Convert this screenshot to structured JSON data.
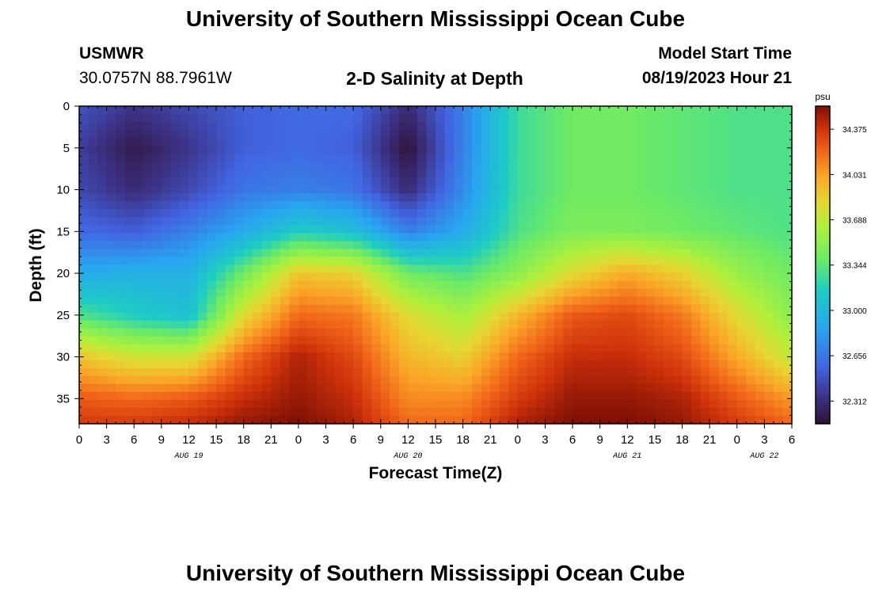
{
  "header": {
    "title": "University of Southern Mississippi Ocean Cube",
    "station": "USMWR",
    "coords": "30.0757N  88.7961W",
    "subtitle": "2-D Salinity at Depth",
    "model_label": "Model Start Time",
    "model_time": "08/19/2023 Hour 21"
  },
  "footer": {
    "title": "University of Southern Mississippi Ocean Cube"
  },
  "chart_data": {
    "type": "heatmap",
    "title": "2-D Salinity at Depth",
    "xlabel": "Forecast Time(Z)",
    "ylabel": "Depth (ft)",
    "x_tick_labels": [
      "0",
      "3",
      "6",
      "9",
      "12",
      "15",
      "18",
      "21",
      "0",
      "3",
      "6",
      "9",
      "12",
      "15",
      "18",
      "21",
      "0",
      "3",
      "6",
      "9",
      "12",
      "15",
      "18",
      "21",
      "0",
      "3",
      "6"
    ],
    "x_range_hours": [
      0,
      78
    ],
    "date_labels": [
      {
        "text": "AUG 19",
        "hour": 12
      },
      {
        "text": "AUG 20",
        "hour": 36
      },
      {
        "text": "AUG 21",
        "hour": 60
      },
      {
        "text": "AUG 22",
        "hour": 75
      }
    ],
    "y_ticks": [
      0,
      5,
      10,
      15,
      20,
      25,
      30,
      35
    ],
    "ylim": [
      0,
      38
    ],
    "colorbar": {
      "unit": "psu",
      "ticks": [
        32.312,
        32.656,
        33.0,
        33.344,
        33.688,
        34.031,
        34.375
      ],
      "tick_labels": [
        "32.312",
        "32.656",
        "33.000",
        "33.344",
        "33.688",
        "34.031",
        "34.375"
      ],
      "range": [
        32.14,
        34.55
      ]
    },
    "salinity_field": {
      "hours": [
        0,
        6,
        12,
        18,
        24,
        30,
        36,
        42,
        48,
        54,
        60,
        66,
        72,
        78
      ],
      "depths_ft": [
        0,
        5,
        10,
        15,
        20,
        25,
        30,
        35,
        38
      ],
      "values": [
        [
          32.5,
          32.35,
          32.45,
          32.55,
          32.6,
          32.6,
          32.3,
          32.7,
          33.25,
          33.4,
          33.4,
          33.35,
          33.3,
          33.3
        ],
        [
          32.4,
          32.2,
          32.35,
          32.55,
          32.6,
          32.55,
          32.15,
          32.7,
          33.25,
          33.4,
          33.4,
          33.35,
          33.3,
          33.3
        ],
        [
          32.45,
          32.3,
          32.45,
          32.65,
          32.7,
          32.65,
          32.3,
          32.75,
          33.25,
          33.4,
          33.4,
          33.35,
          33.3,
          33.3
        ],
        [
          32.6,
          32.55,
          32.7,
          32.9,
          33.15,
          33.05,
          32.7,
          32.9,
          33.3,
          33.45,
          33.45,
          33.4,
          33.35,
          33.3
        ],
        [
          32.9,
          32.95,
          32.95,
          33.4,
          33.9,
          33.85,
          33.4,
          33.3,
          33.5,
          33.8,
          34.0,
          33.85,
          33.55,
          33.4
        ],
        [
          33.3,
          33.15,
          33.05,
          33.8,
          34.2,
          34.15,
          33.8,
          33.6,
          33.95,
          34.25,
          34.3,
          34.15,
          33.8,
          33.5
        ],
        [
          33.9,
          33.75,
          33.75,
          34.2,
          34.45,
          34.3,
          33.95,
          33.85,
          34.2,
          34.4,
          34.4,
          34.3,
          34.0,
          33.7
        ],
        [
          34.25,
          34.2,
          34.25,
          34.4,
          34.5,
          34.4,
          34.1,
          34.1,
          34.35,
          34.5,
          34.5,
          34.45,
          34.25,
          34.05
        ],
        [
          34.35,
          34.35,
          34.4,
          34.5,
          34.55,
          34.45,
          34.2,
          34.2,
          34.45,
          34.55,
          34.55,
          34.5,
          34.35,
          34.2
        ]
      ]
    }
  }
}
